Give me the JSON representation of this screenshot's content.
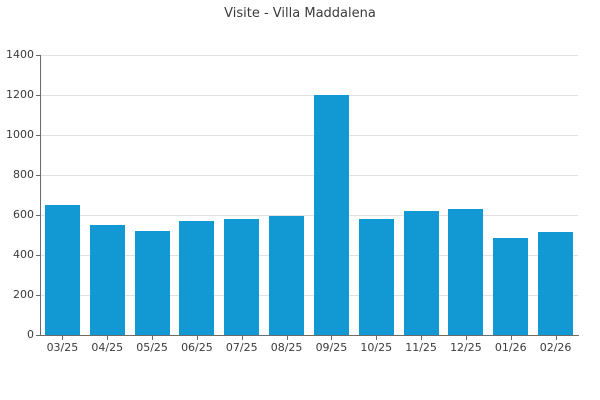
{
  "chart_data": {
    "type": "bar",
    "title": "Visite - Villa Maddalena",
    "categories": [
      "03/25",
      "04/25",
      "05/25",
      "06/25",
      "07/25",
      "08/25",
      "09/25",
      "10/25",
      "11/25",
      "12/25",
      "01/26",
      "02/26"
    ],
    "values": [
      650,
      550,
      520,
      570,
      580,
      595,
      1200,
      580,
      620,
      630,
      485,
      515
    ],
    "xlabel": "",
    "ylabel": "",
    "ylim": [
      0,
      1400
    ],
    "y_ticks": [
      0,
      200,
      400,
      600,
      800,
      1000,
      1200,
      1400
    ],
    "grid": true,
    "legend": false,
    "bar_color": "#1299d4",
    "grid_color": "#e2e2e2",
    "axis_color": "#6b6b6b",
    "text_color": "#3b3b3b"
  }
}
